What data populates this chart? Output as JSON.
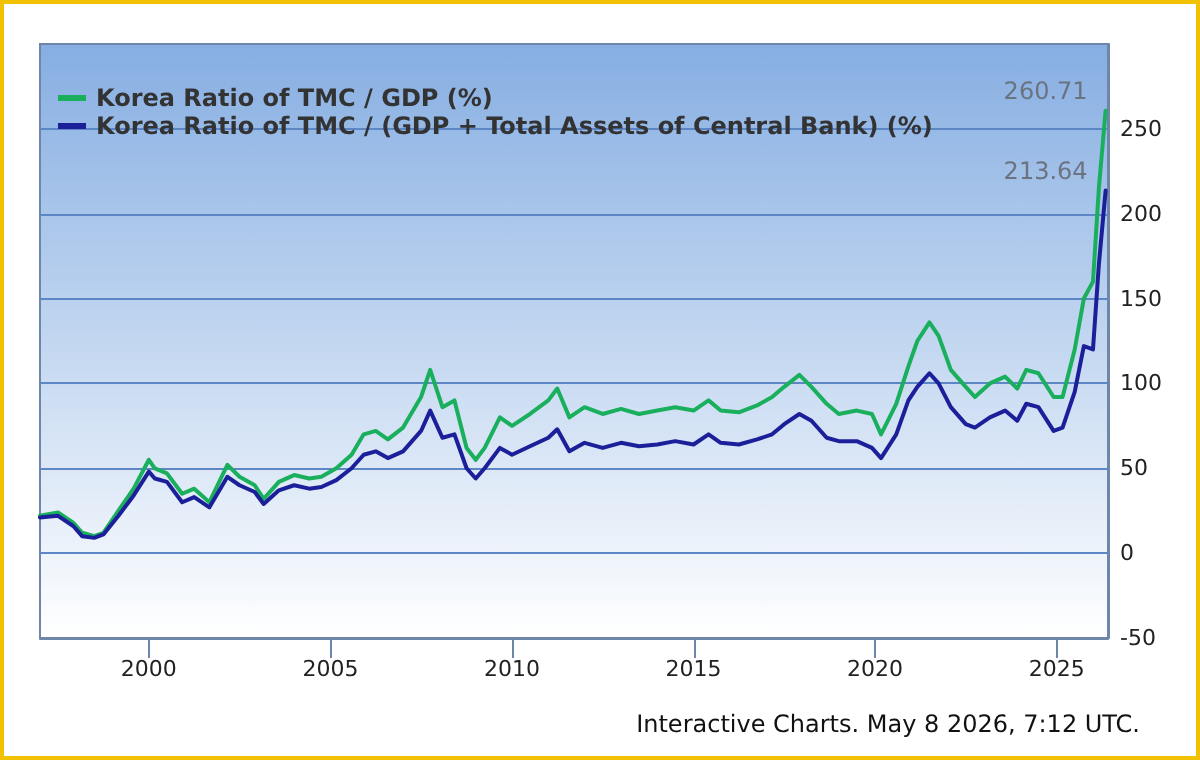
{
  "chart_data": {
    "type": "line",
    "x": [
      "1997-01",
      "1997-07",
      "1997-12",
      "1998-03",
      "1998-07",
      "1998-10",
      "1999-03",
      "1999-08",
      "2000-01",
      "2000-03",
      "2000-07",
      "2000-12",
      "2001-04",
      "2001-09",
      "2002-03",
      "2002-07",
      "2002-12",
      "2003-03",
      "2003-08",
      "2004-01",
      "2004-06",
      "2004-10",
      "2005-03",
      "2005-08",
      "2005-12",
      "2006-04",
      "2006-08",
      "2007-01",
      "2007-07",
      "2007-10",
      "2008-02",
      "2008-06",
      "2008-10",
      "2009-01",
      "2009-04",
      "2009-09",
      "2010-01",
      "2010-07",
      "2011-01",
      "2011-04",
      "2011-08",
      "2012-01",
      "2012-07",
      "2013-01",
      "2013-07",
      "2014-01",
      "2014-07",
      "2015-01",
      "2015-06",
      "2015-10",
      "2016-04",
      "2016-10",
      "2017-03",
      "2017-07",
      "2017-12",
      "2018-04",
      "2018-09",
      "2019-01",
      "2019-07",
      "2019-12",
      "2020-03",
      "2020-08",
      "2020-12",
      "2021-03",
      "2021-07",
      "2021-10",
      "2022-02",
      "2022-07",
      "2022-10",
      "2023-03",
      "2023-08",
      "2023-12",
      "2024-03",
      "2024-07",
      "2024-12",
      "2025-03",
      "2025-07",
      "2025-10",
      "2026-01",
      "2026-03",
      "2026-05-08"
    ],
    "series": [
      {
        "name": "Korea Ratio of TMC / GDP (%)",
        "color": "#1aaf5d",
        "values": [
          22,
          24,
          18,
          12,
          10,
          12,
          25,
          38,
          55,
          50,
          47,
          35,
          38,
          30,
          52,
          45,
          40,
          32,
          42,
          46,
          44,
          45,
          50,
          58,
          70,
          72,
          67,
          74,
          92,
          108,
          86,
          90,
          62,
          55,
          62,
          80,
          75,
          82,
          90,
          97,
          80,
          86,
          82,
          85,
          82,
          84,
          86,
          84,
          90,
          84,
          83,
          87,
          92,
          98,
          105,
          98,
          88,
          82,
          84,
          82,
          70,
          88,
          110,
          125,
          136,
          128,
          108,
          98,
          92,
          100,
          104,
          97,
          108,
          106,
          92,
          92,
          120,
          150,
          160,
          215,
          260.71
        ],
        "value_labels": [
          null,
          null,
          null,
          null,
          null,
          null,
          null,
          null,
          null,
          null,
          null,
          null,
          null,
          null,
          null,
          null,
          null,
          null,
          null,
          null,
          null,
          null,
          null,
          null,
          null,
          null,
          null,
          null,
          null,
          null,
          null,
          null,
          null,
          null,
          null,
          null,
          null,
          null,
          null,
          null,
          null,
          null,
          null,
          null,
          null,
          null,
          null,
          null,
          null,
          null,
          null,
          null,
          null,
          null,
          null,
          null,
          null,
          null,
          null,
          null,
          null,
          null,
          null,
          null,
          null,
          null,
          null,
          null,
          null,
          null,
          null,
          null,
          null,
          null,
          null,
          null,
          null,
          null,
          null,
          null,
          "260.71"
        ]
      },
      {
        "name": "Korea Ratio of TMC / (GDP + Total Assets of Central Bank) (%)",
        "color": "#1c1f9a",
        "values": [
          21,
          22,
          16,
          10,
          9,
          11,
          22,
          34,
          48,
          44,
          42,
          30,
          33,
          27,
          45,
          40,
          36,
          29,
          37,
          40,
          38,
          39,
          43,
          50,
          58,
          60,
          56,
          60,
          72,
          84,
          68,
          70,
          50,
          44,
          50,
          62,
          58,
          63,
          68,
          73,
          60,
          65,
          62,
          65,
          63,
          64,
          66,
          64,
          70,
          65,
          64,
          67,
          70,
          76,
          82,
          78,
          68,
          66,
          66,
          62,
          56,
          70,
          90,
          98,
          106,
          100,
          86,
          76,
          74,
          80,
          84,
          78,
          88,
          86,
          72,
          74,
          95,
          122,
          120,
          170,
          213.64
        ],
        "value_labels": [
          null,
          null,
          null,
          null,
          null,
          null,
          null,
          null,
          null,
          null,
          null,
          null,
          null,
          null,
          null,
          null,
          null,
          null,
          null,
          null,
          null,
          null,
          null,
          null,
          null,
          null,
          null,
          null,
          null,
          null,
          null,
          null,
          null,
          null,
          null,
          null,
          null,
          null,
          null,
          null,
          null,
          null,
          null,
          null,
          null,
          null,
          null,
          null,
          null,
          null,
          null,
          null,
          null,
          null,
          null,
          null,
          null,
          null,
          null,
          null,
          null,
          null,
          null,
          null,
          null,
          null,
          null,
          null,
          null,
          null,
          null,
          null,
          null,
          null,
          null,
          null,
          null,
          null,
          null,
          null,
          "213.64"
        ]
      }
    ],
    "xlim": [
      "1997-01",
      "2026-06"
    ],
    "xticks": [
      {
        "value": "2000",
        "label": "2000"
      },
      {
        "value": "2005",
        "label": "2005"
      },
      {
        "value": "2010",
        "label": "2010"
      },
      {
        "value": "2015",
        "label": "2015"
      },
      {
        "value": "2020",
        "label": "2020"
      },
      {
        "value": "2025",
        "label": "2025"
      }
    ],
    "ylim": [
      -50,
      300
    ],
    "yticks": [
      -50,
      0,
      50,
      100,
      150,
      200,
      250
    ],
    "grid": "y",
    "legend": "top left",
    "marker": "none",
    "line_style": "solid",
    "annotations": [
      "Interactive Charts. May 8 2026, 7:12 UTC."
    ]
  }
}
